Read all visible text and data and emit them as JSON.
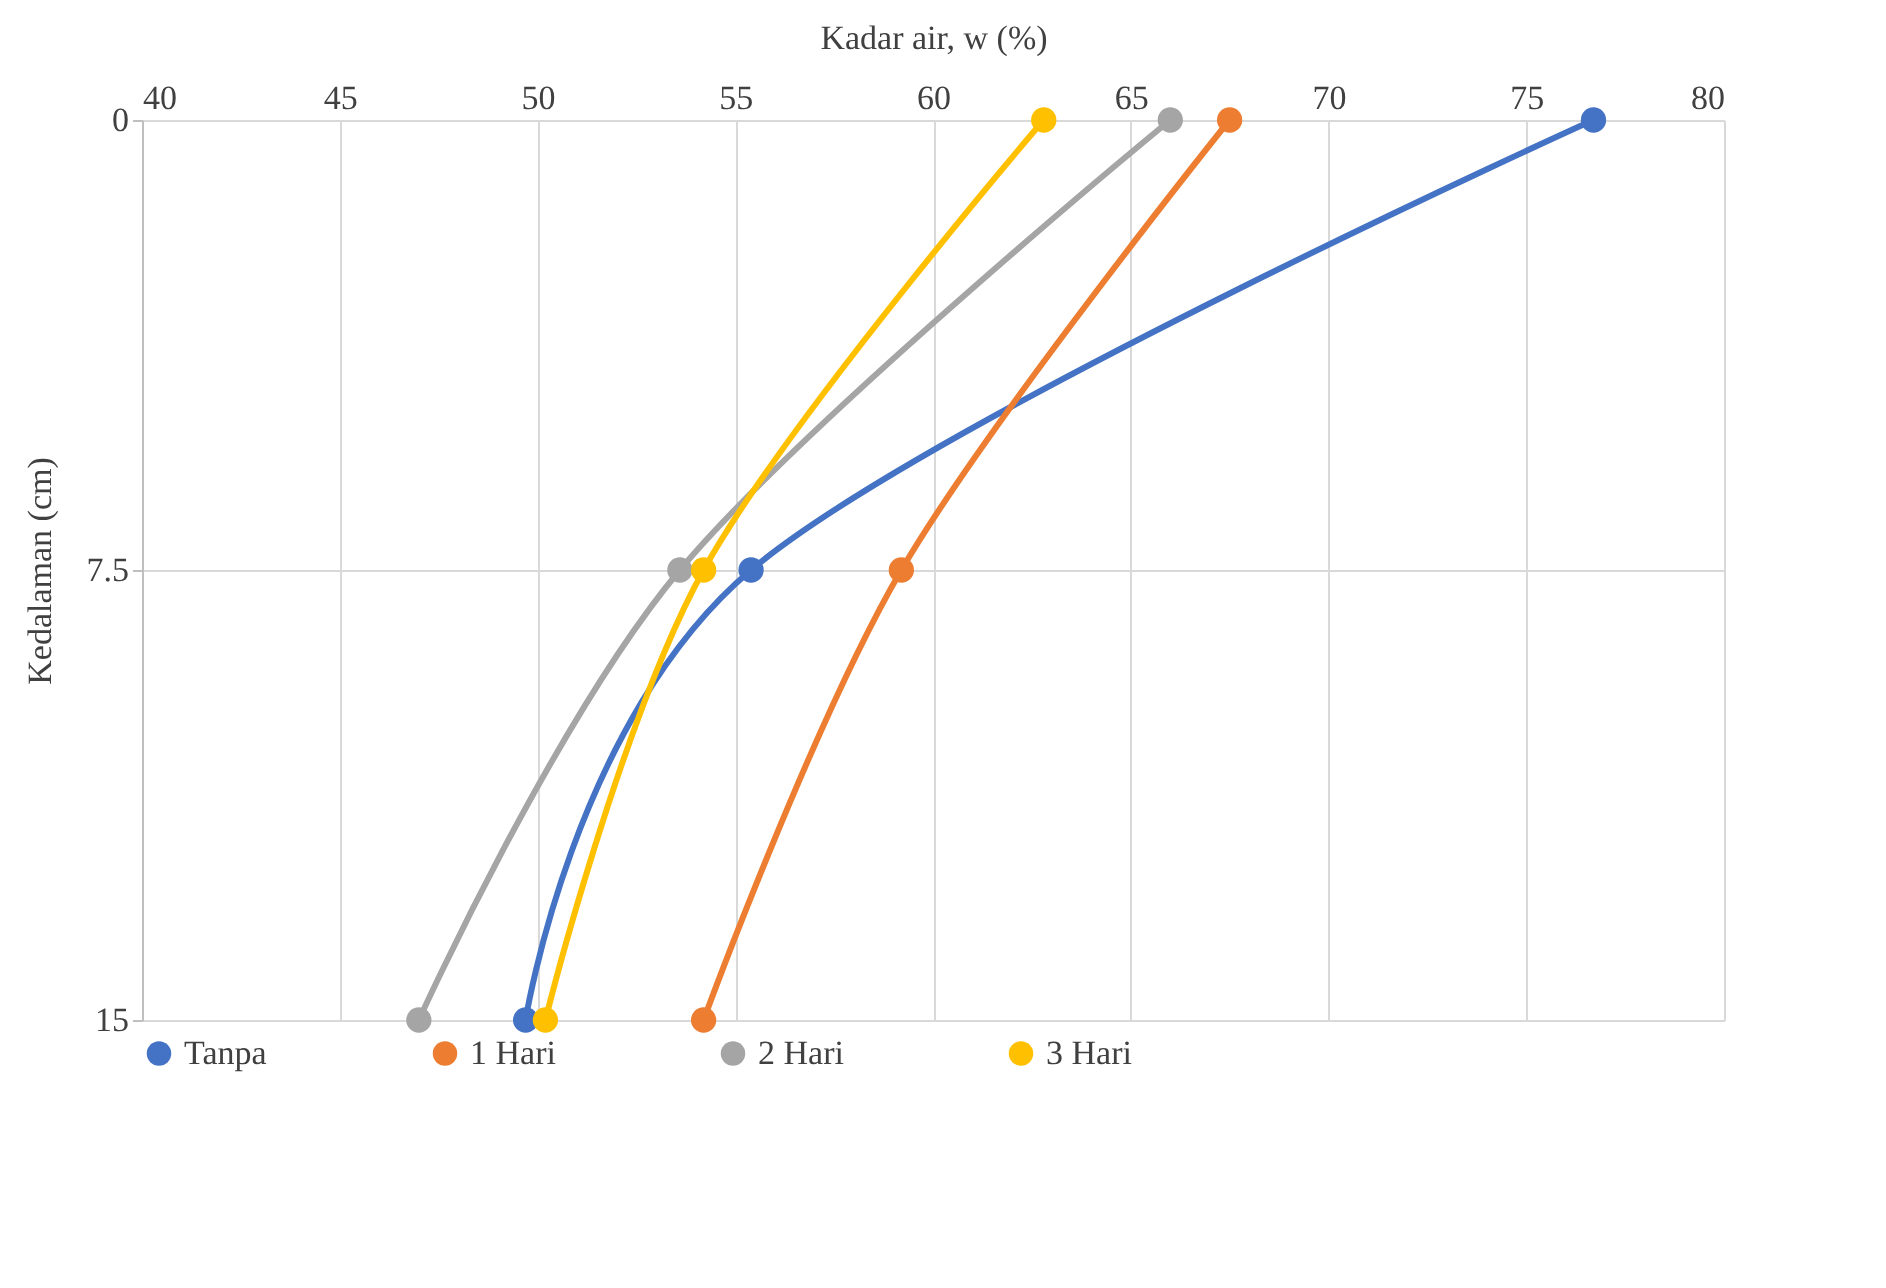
{
  "chart_data": {
    "type": "line",
    "xlabel": "Kadar air, w (%)",
    "ylabel": "Kedalaman (cm)",
    "xlim": [
      40,
      80
    ],
    "xticks": [
      40,
      45,
      50,
      55,
      60,
      65,
      70,
      75,
      80
    ],
    "ylim": [
      15,
      0
    ],
    "yticks": [
      0,
      7.5,
      15
    ],
    "grid": true,
    "legend": "bottom",
    "marker": "circle",
    "line_style": "solid",
    "series": [
      {
        "name": "Tanpa",
        "color": "#4472c4",
        "x": [
          76.7,
          55.4,
          49.7
        ],
        "values": [
          0,
          7.5,
          15
        ]
      },
      {
        "name": "1 Hari",
        "color": "#ed7d31",
        "x": [
          67.5,
          59.2,
          54.2
        ],
        "values": [
          0,
          7.5,
          15
        ]
      },
      {
        "name": "2 Hari",
        "color": "#a5a5a5",
        "x": [
          66.0,
          53.6,
          47.0
        ],
        "values": [
          0,
          7.5,
          15
        ]
      },
      {
        "name": "3 Hari",
        "color": "#ffc000",
        "x": [
          62.8,
          54.2,
          50.2
        ],
        "values": [
          0,
          7.5,
          15
        ]
      }
    ]
  }
}
